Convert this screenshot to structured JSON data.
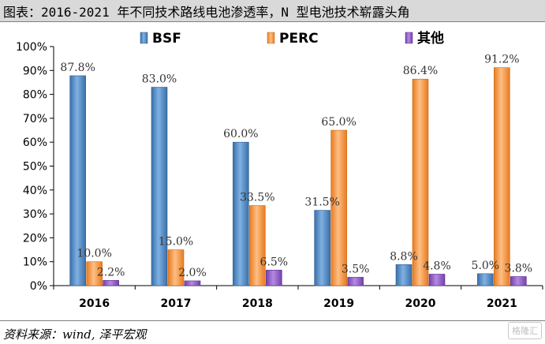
{
  "header": {
    "title": "图表：2016-2021 年不同技术路线电池渗透率，N 型电池技术崭露头角"
  },
  "footer": {
    "source": "资料来源：wind, 泽平宏观",
    "watermark": "格隆汇"
  },
  "colors": {
    "bsf": "#4f86c1",
    "perc": "#f28e3a",
    "other": "#8e58c4"
  },
  "chart_data": {
    "type": "bar",
    "categories": [
      "2016",
      "2017",
      "2018",
      "2019",
      "2020",
      "2021"
    ],
    "series": [
      {
        "name": "BSF",
        "values": [
          87.8,
          83.0,
          60.0,
          31.5,
          8.8,
          5.0
        ],
        "labels": [
          "87.8%",
          "83.0%",
          "60.0%",
          "31.5%",
          "8.8%",
          "5.0%"
        ]
      },
      {
        "name": "PERC",
        "values": [
          10.0,
          15.0,
          33.5,
          65.0,
          86.4,
          91.2
        ],
        "labels": [
          "10.0%",
          "15.0%",
          "33.5%",
          "65.0%",
          "86.4%",
          "91.2%"
        ]
      },
      {
        "name": "其他",
        "values": [
          2.2,
          2.0,
          6.5,
          3.5,
          4.8,
          3.8
        ],
        "labels": [
          "2.2%",
          "2.0%",
          "6.5%",
          "3.5%",
          "4.8%",
          "3.8%"
        ]
      }
    ],
    "yticks": [
      "0%",
      "10%",
      "20%",
      "30%",
      "40%",
      "50%",
      "60%",
      "70%",
      "80%",
      "90%",
      "100%"
    ],
    "ylim": [
      0,
      100
    ],
    "legend": "top",
    "grid": false
  }
}
